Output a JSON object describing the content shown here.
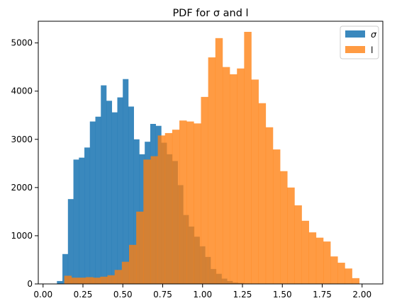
{
  "chart_data": {
    "type": "histogram",
    "title": "PDF for σ and l",
    "xlabel": "",
    "ylabel": "",
    "xlim": [
      -0.03,
      2.13
    ],
    "ylim": [
      0,
      5450
    ],
    "xticks": [
      "0.00",
      "0.25",
      "0.50",
      "0.75",
      "1.00",
      "1.25",
      "1.50",
      "1.75",
      "2.00"
    ],
    "xtick_values": [
      0,
      0.25,
      0.5,
      0.75,
      1.0,
      1.25,
      1.5,
      1.75,
      2.0
    ],
    "yticks": [
      "0",
      "1000",
      "2000",
      "3000",
      "4000",
      "5000"
    ],
    "ytick_values": [
      0,
      1000,
      2000,
      3000,
      4000,
      5000
    ],
    "legend_position": "top-right",
    "grid": false,
    "series": [
      {
        "name": "σ",
        "color": "#1f77b4",
        "opacity": 0.88,
        "bin_start": 0.087,
        "bin_width": 0.0344,
        "values": [
          60,
          620,
          1760,
          2580,
          2620,
          2830,
          3370,
          3470,
          4120,
          3800,
          3560,
          3870,
          4250,
          3680,
          3000,
          2690,
          2950,
          3320,
          3280,
          2930,
          2690,
          2550,
          2050,
          1430,
          1190,
          980,
          780,
          560,
          310,
          210,
          110,
          60,
          30,
          20,
          10
        ]
      },
      {
        "name": "l",
        "color": "#ff7f0e",
        "opacity": 0.78,
        "bin_start": 0.133,
        "bin_width": 0.0451,
        "values": [
          170,
          130,
          130,
          140,
          130,
          150,
          180,
          290,
          460,
          810,
          1500,
          2580,
          2650,
          3080,
          3130,
          3200,
          3390,
          3370,
          3330,
          3880,
          4700,
          5100,
          4500,
          4350,
          4470,
          5230,
          4240,
          3750,
          3250,
          2790,
          2340,
          2000,
          1630,
          1310,
          1070,
          960,
          880,
          570,
          440,
          320,
          120
        ]
      }
    ]
  }
}
